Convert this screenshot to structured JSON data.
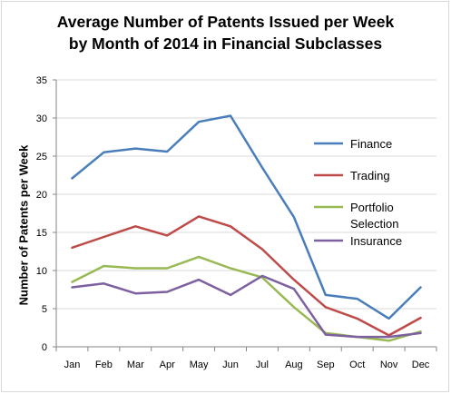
{
  "chart_data": {
    "type": "line",
    "title": "Average Number of Patents Issued per Week",
    "subtitle": "by Month of 2014 in Financial Subclasses",
    "ylabel": "Number of Patents per Week",
    "xlabel": "",
    "ylim": [
      0,
      35
    ],
    "yticks": [
      0,
      5,
      10,
      15,
      20,
      25,
      30,
      35
    ],
    "grid": true,
    "legend_position": "right",
    "categories": [
      "Jan",
      "Feb",
      "Mar",
      "Apr",
      "May",
      "Jun",
      "Jul",
      "Aug",
      "Sep",
      "Oct",
      "Nov",
      "Dec"
    ],
    "series": [
      {
        "name": "Finance",
        "color": "#4a7ebb",
        "values": [
          22.1,
          25.5,
          26.0,
          25.6,
          29.5,
          30.3,
          23.5,
          17.0,
          6.8,
          6.3,
          3.7,
          7.8
        ]
      },
      {
        "name": "Trading",
        "color": "#be4b48",
        "values": [
          13.0,
          14.4,
          15.8,
          14.6,
          17.1,
          15.8,
          12.8,
          8.8,
          5.2,
          3.7,
          1.5,
          3.8
        ]
      },
      {
        "name": "Portfolio Selection",
        "color": "#98b954",
        "values": [
          8.5,
          10.6,
          10.3,
          10.3,
          11.8,
          10.3,
          9.1,
          5.2,
          1.8,
          1.3,
          0.8,
          2.0
        ]
      },
      {
        "name": "Insurance",
        "color": "#7d60a0",
        "values": [
          7.8,
          8.3,
          7.0,
          7.2,
          8.8,
          6.8,
          9.3,
          7.6,
          1.6,
          1.3,
          1.3,
          1.8
        ]
      }
    ]
  }
}
